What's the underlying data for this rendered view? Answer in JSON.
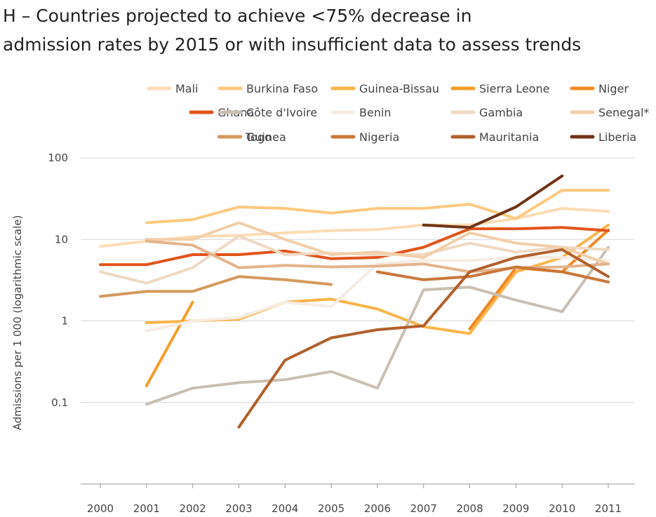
{
  "chart_data": {
    "type": "line",
    "title_lines": [
      "H – Countries projected to achieve <75% decrease in",
      "admission rates by 2015 or with insufficient data to assess trends"
    ],
    "xlabel": "",
    "ylabel": "Admissions per 1 000 (logarithmic scale)",
    "y_scale": "log",
    "ylim": [
      0.01,
      100
    ],
    "y_ticks": [
      {
        "value": 100,
        "label": "100"
      },
      {
        "value": 10,
        "label": "10"
      },
      {
        "value": 1,
        "label": "1"
      },
      {
        "value": 0.1,
        "label": "0.1"
      }
    ],
    "x_ticks": [
      2000,
      2001,
      2002,
      2003,
      2004,
      2005,
      2006,
      2007,
      2008,
      2009,
      2010,
      2011
    ],
    "xlim": [
      2000,
      2011
    ],
    "grid": "horizontal",
    "legend_position": "top",
    "series": [
      {
        "name": "Mali",
        "color": "#fbdcb4",
        "points": [
          [
            2000,
            8.2
          ],
          [
            2001,
            9.5
          ],
          [
            2002,
            10.8
          ],
          [
            2003,
            11.2
          ],
          [
            2004,
            12.0
          ],
          [
            2005,
            12.8
          ],
          [
            2006,
            13.2
          ],
          [
            2007,
            15.0
          ],
          [
            2008,
            15.0
          ],
          [
            2009,
            18.0
          ],
          [
            2010,
            24.0
          ],
          [
            2011,
            22.0
          ]
        ]
      },
      {
        "name": "Burkina Faso",
        "color": "#fcc97e",
        "points": [
          [
            2001,
            16.0
          ],
          [
            2002,
            17.5
          ],
          [
            2003,
            25.0
          ],
          [
            2004,
            24.0
          ],
          [
            2005,
            21.0
          ],
          [
            2006,
            24.0
          ],
          [
            2007,
            24.0
          ],
          [
            2008,
            27.0
          ],
          [
            2009,
            18.0
          ],
          [
            2010,
            40.0
          ],
          [
            2011,
            40.0
          ]
        ]
      },
      {
        "name": "Guinea-Bissau",
        "color": "#f9b54a",
        "points": [
          [
            2001,
            0.95
          ],
          [
            2002,
            1.0
          ],
          [
            2003,
            1.05
          ],
          [
            2004,
            1.7
          ],
          [
            2005,
            1.85
          ],
          [
            2006,
            1.4
          ],
          [
            2007,
            0.85
          ],
          [
            2008,
            0.7
          ],
          [
            2009,
            4.0
          ],
          [
            2010,
            6.0
          ],
          [
            2011,
            15.0
          ]
        ]
      },
      {
        "name": "Sierra Leone",
        "color": "#f4a02c",
        "points": [
          [
            2001,
            0.16
          ],
          [
            2002,
            1.7
          ]
        ]
      },
      {
        "name": "Niger",
        "color": "#ef8a22",
        "points": [
          [
            2008,
            0.8
          ],
          [
            2009,
            4.5
          ],
          [
            2010,
            4.0
          ],
          [
            2011,
            13.0
          ]
        ]
      },
      {
        "name": "Ghana",
        "color": "#e2541b",
        "points": [
          [
            2000,
            4.9
          ],
          [
            2001,
            4.9
          ],
          [
            2002,
            6.5
          ],
          [
            2003,
            6.5
          ],
          [
            2004,
            7.2
          ],
          [
            2005,
            5.8
          ],
          [
            2006,
            6.0
          ],
          [
            2007,
            8.0
          ],
          [
            2008,
            13.5
          ],
          [
            2009,
            13.5
          ],
          [
            2010,
            14.0
          ],
          [
            2011,
            12.8
          ]
        ]
      },
      {
        "name": "Côte d'Ivoire",
        "color": "#cbbfb3",
        "points": [
          [
            2001,
            0.095
          ],
          [
            2002,
            0.15
          ],
          [
            2003,
            0.175
          ],
          [
            2004,
            0.19
          ],
          [
            2005,
            0.24
          ],
          [
            2006,
            0.15
          ],
          [
            2007,
            2.4
          ],
          [
            2008,
            2.6
          ],
          [
            2009,
            1.8
          ],
          [
            2010,
            1.3
          ],
          [
            2011,
            8.0
          ]
        ]
      },
      {
        "name": "Benin",
        "color": "#f5ece2",
        "points": [
          [
            2001,
            0.75
          ],
          [
            2002,
            1.0
          ],
          [
            2003,
            1.1
          ],
          [
            2004,
            1.7
          ],
          [
            2005,
            1.5
          ],
          [
            2006,
            5.0
          ],
          [
            2007,
            5.5
          ],
          [
            2008,
            5.5
          ],
          [
            2009,
            6.0
          ],
          [
            2010,
            6.0
          ],
          [
            2011,
            5.5
          ]
        ]
      },
      {
        "name": "Gambia",
        "color": "#efd9c3",
        "points": [
          [
            2000,
            4.0
          ],
          [
            2001,
            2.9
          ],
          [
            2002,
            4.5
          ],
          [
            2003,
            11.0
          ],
          [
            2004,
            6.5
          ],
          [
            2005,
            6.8
          ],
          [
            2006,
            6.5
          ],
          [
            2007,
            6.5
          ],
          [
            2008,
            9.0
          ],
          [
            2009,
            7.0
          ],
          [
            2010,
            8.0
          ],
          [
            2011,
            7.5
          ]
        ]
      },
      {
        "name": "Senegal*",
        "color": "#f1cfaa",
        "points": [
          [
            2001,
            10.0
          ],
          [
            2002,
            10.0
          ],
          [
            2003,
            16.0
          ],
          [
            2004,
            10.0
          ],
          [
            2005,
            6.5
          ],
          [
            2006,
            7.0
          ],
          [
            2007,
            6.0
          ],
          [
            2008,
            12.0
          ],
          [
            2009,
            9.0
          ],
          [
            2010,
            8.0
          ],
          [
            2011,
            5.0
          ]
        ]
      },
      {
        "name": "Togo",
        "color": "#e3b48c",
        "points": [
          [
            2001,
            9.5
          ],
          [
            2002,
            8.5
          ],
          [
            2003,
            4.5
          ],
          [
            2004,
            4.8
          ],
          [
            2005,
            4.6
          ],
          [
            2006,
            4.7
          ],
          [
            2007,
            5.0
          ],
          [
            2008,
            4.0
          ],
          [
            2009,
            4.5
          ],
          [
            2010,
            4.6
          ],
          [
            2011,
            5.0
          ]
        ]
      },
      {
        "name": "Guinea",
        "color": "#d59a5e",
        "points": [
          [
            2000,
            2.0
          ],
          [
            2001,
            2.3
          ],
          [
            2002,
            2.3
          ],
          [
            2003,
            3.5
          ],
          [
            2004,
            3.2
          ],
          [
            2005,
            2.8
          ]
        ]
      },
      {
        "name": "Nigeria",
        "color": "#c9773a",
        "points": [
          [
            2006,
            4.0
          ],
          [
            2007,
            3.2
          ],
          [
            2008,
            3.5
          ],
          [
            2009,
            4.6
          ],
          [
            2010,
            4.0
          ],
          [
            2011,
            3.0
          ]
        ]
      },
      {
        "name": "Mauritania",
        "color": "#b1602c",
        "points": [
          [
            2003,
            0.05
          ],
          [
            2004,
            0.33
          ],
          [
            2005,
            0.62
          ],
          [
            2006,
            0.78
          ],
          [
            2007,
            0.87
          ],
          [
            2008,
            4.0
          ],
          [
            2009,
            6.0
          ],
          [
            2010,
            7.5
          ],
          [
            2011,
            3.5
          ]
        ]
      },
      {
        "name": "Liberia",
        "color": "#6e3417",
        "points": [
          [
            2007,
            15.0
          ],
          [
            2008,
            14.0
          ],
          [
            2009,
            25.0
          ],
          [
            2010,
            60.0
          ]
        ]
      }
    ]
  }
}
